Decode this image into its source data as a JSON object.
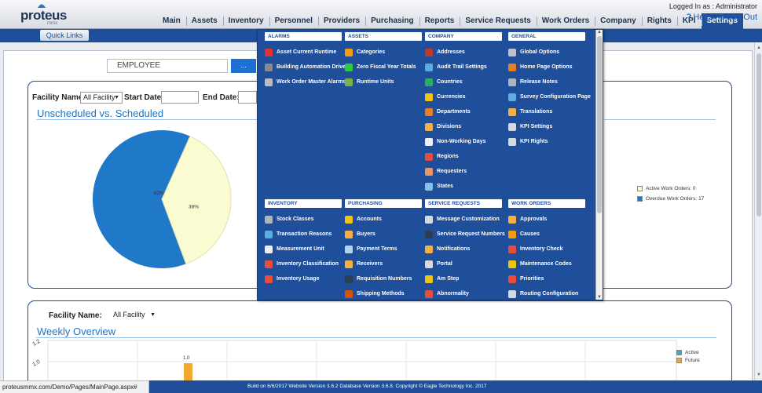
{
  "app": {
    "logo": "proteus",
    "logo_sub": "mmx"
  },
  "header": {
    "nav": [
      "Main",
      "Assets",
      "Inventory",
      "Personnel",
      "Providers",
      "Purchasing",
      "Reports",
      "Service Requests",
      "Work Orders",
      "Company",
      "Rights",
      "KPI",
      "Settings"
    ],
    "active_nav": "Settings",
    "logged_in": "Logged In as : Administrator",
    "help": "Help",
    "logout": "Log Out",
    "quick_links": "Quick Links"
  },
  "employee": {
    "value": "EMPLOYEE",
    "button": "..."
  },
  "panel1": {
    "facility_label": "Facility Name:",
    "facility_value": "All Facility",
    "start_label": "Start Date:",
    "end_label": "End Date:",
    "title": "Unscheduled vs. Scheduled"
  },
  "panel2": {
    "facility_label": "Facility Name:",
    "facility_value": "All Facility",
    "title": "Weekly Overview"
  },
  "chart_data": [
    {
      "type": "pie",
      "labels": [
        "63%",
        "38%"
      ],
      "values": [
        63,
        38
      ],
      "colors": [
        "#1f78c8",
        "#fbfbd2"
      ],
      "legend": [
        "Active Work Orders: 0",
        "Overdue Work Orders: 17"
      ],
      "legend_colors": [
        "#fbfbd2",
        "#1f78c8"
      ]
    },
    {
      "type": "bar",
      "yticks": [
        "1.2",
        "1.0"
      ],
      "data_labels": [
        "1.0"
      ],
      "legend": [
        "Active",
        "Future"
      ],
      "legend_colors": [
        "#4aa3b8",
        "#f0a830"
      ]
    }
  ],
  "menu": {
    "sections": [
      {
        "title": "ALARMS",
        "items": [
          {
            "label": "Asset Current Runtime",
            "icon": "alarm-runtime-icon",
            "color": "#d33"
          },
          {
            "label": "Building Automation Driver",
            "icon": "building-icon",
            "color": "#8a8a8a"
          },
          {
            "label": "Work Order Master Alarms",
            "icon": "alarm-list-icon",
            "color": "#bbb"
          }
        ]
      },
      {
        "title": "ASSETS",
        "items": [
          {
            "label": "Categories",
            "icon": "categories-icon",
            "color": "#f39c12"
          },
          {
            "label": "Zero Fiscal Year Totals",
            "icon": "dollar-icon",
            "color": "#2ecc40"
          },
          {
            "label": "Runtime Units",
            "icon": "runtime-units-icon",
            "color": "#7cb342"
          }
        ]
      },
      {
        "title": "COMPANY",
        "items": [
          {
            "label": "Addresses",
            "icon": "address-book-icon",
            "color": "#c0392b"
          },
          {
            "label": "Audit Trail Settings",
            "icon": "audit-icon",
            "color": "#5dade2"
          },
          {
            "label": "Countries",
            "icon": "globe-icon",
            "color": "#27ae60"
          },
          {
            "label": "Currencies",
            "icon": "currency-icon",
            "color": "#f1c40f"
          },
          {
            "label": "Departments",
            "icon": "departments-icon",
            "color": "#e67e22"
          },
          {
            "label": "Divisions",
            "icon": "divisions-icon",
            "color": "#f5b041"
          },
          {
            "label": "Non-Working Days",
            "icon": "calendar-icon",
            "color": "#ecf0f1"
          },
          {
            "label": "Regions",
            "icon": "regions-icon",
            "color": "#e74c3c"
          },
          {
            "label": "Requesters",
            "icon": "requester-icon",
            "color": "#e59866"
          },
          {
            "label": "States",
            "icon": "states-icon",
            "color": "#85c1e9"
          }
        ]
      },
      {
        "title": "GENERAL",
        "items": [
          {
            "label": "Global Options",
            "icon": "global-options-icon",
            "color": "#bdc3c7"
          },
          {
            "label": "Home Page Options",
            "icon": "home-page-icon",
            "color": "#e67e22"
          },
          {
            "label": "Release Notes",
            "icon": "release-notes-icon",
            "color": "#aeb6bf"
          },
          {
            "label": "Survey Configuration Page",
            "icon": "survey-icon",
            "color": "#5dade2"
          },
          {
            "label": "Translations",
            "icon": "translations-icon",
            "color": "#f5b041"
          },
          {
            "label": "KPI Settings",
            "icon": "kpi-settings-icon",
            "color": "#d5dbdb"
          },
          {
            "label": "KPI Rights",
            "icon": "kpi-rights-icon",
            "color": "#d5dbdb"
          }
        ]
      },
      {
        "title": "INVENTORY",
        "items": [
          {
            "label": "Stock Classes",
            "icon": "stock-classes-icon",
            "color": "#aab7b8"
          },
          {
            "label": "Transaction Reasons",
            "icon": "transaction-icon",
            "color": "#5dade2"
          },
          {
            "label": "Measurement Unit",
            "icon": "measurement-icon",
            "color": "#ecf0f1"
          },
          {
            "label": "Inventory Classification",
            "icon": "classification-icon",
            "color": "#e74c3c"
          },
          {
            "label": "Inventory Usage",
            "icon": "usage-icon",
            "color": "#e74c3c"
          }
        ]
      },
      {
        "title": "PURCHASING",
        "items": [
          {
            "label": "Accounts",
            "icon": "accounts-icon",
            "color": "#f1c40f"
          },
          {
            "label": "Buyers",
            "icon": "buyers-icon",
            "color": "#f5b041"
          },
          {
            "label": "Payment Terms",
            "icon": "payment-icon",
            "color": "#aed6f1"
          },
          {
            "label": "Receivers",
            "icon": "receivers-icon",
            "color": "#f5b041"
          },
          {
            "label": "Requisition Numbers",
            "icon": "hash-icon",
            "color": "#2c3e50"
          },
          {
            "label": "Shipping Methods",
            "icon": "shipping-icon",
            "color": "#d35400"
          }
        ]
      },
      {
        "title": "SERVICE REQUESTS",
        "items": [
          {
            "label": "Message Customization",
            "icon": "message-icon",
            "color": "#d5dbdb"
          },
          {
            "label": "Service Request Numbers",
            "icon": "hash-icon",
            "color": "#2c3e50"
          },
          {
            "label": "Notifications",
            "icon": "notifications-icon",
            "color": "#f5b041"
          },
          {
            "label": "Portal",
            "icon": "portal-icon",
            "color": "#d5dbdb"
          },
          {
            "label": "Am Step",
            "icon": "am-step-icon",
            "color": "#f1c40f"
          },
          {
            "label": "Abnormality",
            "icon": "warning-icon",
            "color": "#e74c3c"
          }
        ]
      },
      {
        "title": "WORK ORDERS",
        "items": [
          {
            "label": "Approvals",
            "icon": "approvals-icon",
            "color": "#f5b041"
          },
          {
            "label": "Causes",
            "icon": "causes-icon",
            "color": "#f39c12"
          },
          {
            "label": "Inventory Check",
            "icon": "inventory-check-icon",
            "color": "#e74c3c"
          },
          {
            "label": "Maintenance Codes",
            "icon": "maintenance-codes-icon",
            "color": "#f1c40f"
          },
          {
            "label": "Priorities",
            "icon": "priorities-icon",
            "color": "#e74c3c"
          },
          {
            "label": "Routing Configuration",
            "icon": "routing-icon",
            "color": "#d5dbdb"
          }
        ]
      }
    ]
  },
  "status": {
    "url": "proteusmmx.com/Demo/Pages/MainPage.aspx#",
    "build": "Build on 6/6/2017 Website Version 3.6.2 Database Version 3.6.8. Copyright © Eagle Technology Inc. 2017"
  }
}
